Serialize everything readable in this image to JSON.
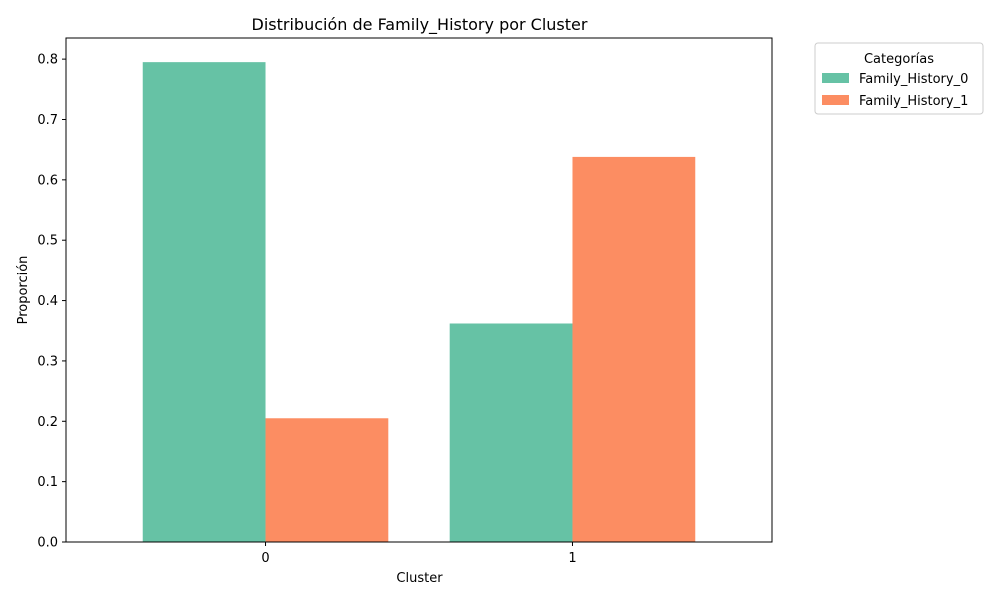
{
  "chart_data": {
    "type": "bar",
    "title": "Distribución de Family_History por Cluster",
    "xlabel": "Cluster",
    "ylabel": "Proporción",
    "categories": [
      "0",
      "1"
    ],
    "series": [
      {
        "name": "Family_History_0",
        "values": [
          0.795,
          0.362
        ],
        "color": "#66c2a5"
      },
      {
        "name": "Family_History_1",
        "values": [
          0.205,
          0.638
        ],
        "color": "#fc8d62"
      }
    ],
    "ylim": [
      0,
      0.835
    ],
    "yticks": [
      0.0,
      0.1,
      0.2,
      0.3,
      0.4,
      0.5,
      0.6,
      0.7,
      0.8
    ],
    "ytick_labels": [
      "0.0",
      "0.1",
      "0.2",
      "0.3",
      "0.4",
      "0.5",
      "0.6",
      "0.7",
      "0.8"
    ],
    "legend": {
      "title": "Categorías",
      "placement": "outside-top-right"
    },
    "grid": false
  }
}
